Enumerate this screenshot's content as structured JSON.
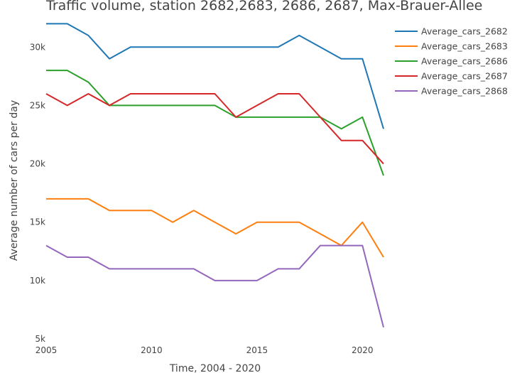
{
  "chart_data": {
    "type": "line",
    "title": "Traffic volume, station 2682,2683, 2686, 2687, Max-Brauer-Allee",
    "xlabel": "Time, 2004 - 2020",
    "ylabel": "Average number of cars per day",
    "x": [
      2005,
      2006,
      2007,
      2008,
      2009,
      2010,
      2011,
      2012,
      2013,
      2014,
      2015,
      2016,
      2017,
      2018,
      2019,
      2020,
      2021
    ],
    "xlim": [
      2005,
      2021
    ],
    "ylim": [
      5000,
      33000
    ],
    "x_ticks": [
      2005,
      2010,
      2015,
      2020
    ],
    "x_tick_labels": [
      "2005",
      "2010",
      "2015",
      "2020"
    ],
    "y_ticks": [
      5000,
      10000,
      15000,
      20000,
      25000,
      30000
    ],
    "y_tick_labels": [
      "5k",
      "10k",
      "15k",
      "20k",
      "25k",
      "30k"
    ],
    "grid": false,
    "legend_position": "top-right",
    "series": [
      {
        "name": "Average_cars_2682",
        "color": "#1f77b4",
        "values": [
          32000,
          32000,
          31000,
          29000,
          30000,
          30000,
          30000,
          30000,
          30000,
          30000,
          30000,
          30000,
          31000,
          30000,
          29000,
          29000,
          23000
        ]
      },
      {
        "name": "Average_cars_2683",
        "color": "#ff7f0e",
        "values": [
          17000,
          17000,
          17000,
          16000,
          16000,
          16000,
          15000,
          16000,
          15000,
          14000,
          15000,
          15000,
          15000,
          14000,
          13000,
          15000,
          12000
        ]
      },
      {
        "name": "Average_cars_2686",
        "color": "#2ca02c",
        "values": [
          28000,
          28000,
          27000,
          25000,
          25000,
          25000,
          25000,
          25000,
          25000,
          24000,
          24000,
          24000,
          24000,
          24000,
          23000,
          24000,
          19000
        ]
      },
      {
        "name": "Average_cars_2687",
        "color": "#d62728",
        "values": [
          26000,
          25000,
          26000,
          25000,
          26000,
          26000,
          26000,
          26000,
          26000,
          24000,
          25000,
          26000,
          26000,
          24000,
          22000,
          22000,
          20000
        ]
      },
      {
        "name": "Average_cars_2868",
        "color": "#9467bd",
        "values": [
          13000,
          12000,
          12000,
          11000,
          11000,
          11000,
          11000,
          11000,
          10000,
          10000,
          10000,
          11000,
          11000,
          13000,
          13000,
          13000,
          6000
        ]
      }
    ]
  }
}
